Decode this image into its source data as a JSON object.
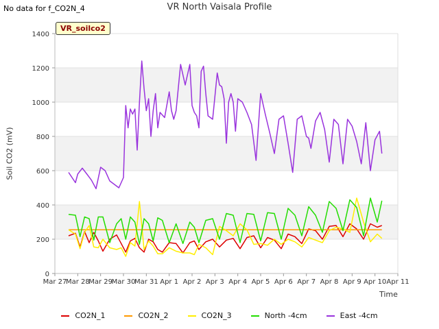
{
  "no_data_note": "No data for f_CO2N_4",
  "site_badge": "VR_soilco2",
  "chart_data": {
    "type": "line",
    "title": "VR North Vaisala Profile",
    "xlabel": "Time",
    "ylabel": "Soil CO2 (mV)",
    "ylim": [
      0,
      1400
    ],
    "xlim": [
      0,
      15
    ],
    "yticks": [
      0,
      200,
      400,
      600,
      800,
      1000,
      1200,
      1400
    ],
    "x_tick_labels": [
      "Mar 27",
      "Mar 28",
      "Mar 29",
      "Mar 30",
      "Mar 31",
      "Apr 1",
      "Apr 2",
      "Apr 3",
      "Apr 4",
      "Apr 5",
      "Apr 6",
      "Apr 7",
      "Apr 8",
      "Apr 9",
      "Apr 10",
      "Apr 11"
    ],
    "grid": "horizontal bands",
    "legend_position": "bottom",
    "series": [
      {
        "name": "CO2N_1",
        "color": "#dd0000",
        "x": [
          0.6,
          0.9,
          1.1,
          1.3,
          1.5,
          1.7,
          1.9,
          2.1,
          2.4,
          2.7,
          2.9,
          3.1,
          3.3,
          3.5,
          3.7,
          3.9,
          4.1,
          4.3,
          4.5,
          4.7,
          5.0,
          5.3,
          5.6,
          5.9,
          6.1,
          6.3,
          6.6,
          6.9,
          7.2,
          7.5,
          7.8,
          8.1,
          8.4,
          8.7,
          9.0,
          9.3,
          9.6,
          9.9,
          10.2,
          10.5,
          10.8,
          11.1,
          11.4,
          11.7,
          12.0,
          12.3,
          12.6,
          12.9,
          13.2,
          13.5,
          13.8,
          14.1,
          14.3
        ],
        "y": [
          220,
          235,
          155,
          245,
          180,
          240,
          190,
          130,
          200,
          225,
          175,
          125,
          190,
          205,
          150,
          125,
          200,
          185,
          140,
          125,
          180,
          175,
          120,
          180,
          190,
          140,
          185,
          200,
          155,
          195,
          205,
          145,
          210,
          220,
          150,
          210,
          195,
          145,
          230,
          215,
          175,
          260,
          250,
          200,
          275,
          280,
          215,
          290,
          260,
          200,
          290,
          270,
          280
        ]
      },
      {
        "name": "CO2N_2",
        "color": "#ff9900",
        "x": [
          0.6,
          14.3
        ],
        "y": [
          255,
          255
        ]
      },
      {
        "name": "CO2N_3",
        "color": "#ffee00",
        "x": [
          0.6,
          0.9,
          1.1,
          1.3,
          1.5,
          1.7,
          1.9,
          2.1,
          2.4,
          2.7,
          2.9,
          3.1,
          3.3,
          3.5,
          3.7,
          3.9,
          4.1,
          4.3,
          4.5,
          4.7,
          5.0,
          5.3,
          5.6,
          5.9,
          6.1,
          6.3,
          6.6,
          6.9,
          7.2,
          7.5,
          7.8,
          8.1,
          8.4,
          8.7,
          9.0,
          9.3,
          9.6,
          9.9,
          10.2,
          10.5,
          10.8,
          11.1,
          11.4,
          11.7,
          12.0,
          12.3,
          12.6,
          12.9,
          13.2,
          13.5,
          13.8,
          14.1,
          14.3
        ],
        "y": [
          255,
          230,
          145,
          240,
          280,
          155,
          150,
          200,
          150,
          140,
          150,
          100,
          180,
          160,
          420,
          140,
          190,
          160,
          115,
          115,
          150,
          130,
          120,
          120,
          110,
          170,
          150,
          110,
          275,
          250,
          220,
          290,
          255,
          170,
          175,
          165,
          200,
          170,
          200,
          185,
          155,
          210,
          195,
          180,
          250,
          270,
          260,
          240,
          440,
          300,
          185,
          230,
          205
        ]
      },
      {
        "name": "North -4cm",
        "color": "#22dd00",
        "x": [
          0.6,
          0.9,
          1.1,
          1.3,
          1.5,
          1.7,
          1.9,
          2.1,
          2.4,
          2.7,
          2.9,
          3.1,
          3.3,
          3.5,
          3.7,
          3.9,
          4.1,
          4.3,
          4.5,
          4.7,
          5.0,
          5.3,
          5.6,
          5.9,
          6.1,
          6.3,
          6.6,
          6.9,
          7.2,
          7.5,
          7.8,
          8.1,
          8.4,
          8.7,
          9.0,
          9.3,
          9.6,
          9.9,
          10.2,
          10.5,
          10.8,
          11.1,
          11.4,
          11.7,
          12.0,
          12.3,
          12.6,
          12.9,
          13.2,
          13.5,
          13.8,
          14.1,
          14.3
        ],
        "y": [
          345,
          340,
          215,
          330,
          320,
          195,
          330,
          330,
          180,
          290,
          320,
          200,
          330,
          300,
          170,
          320,
          290,
          190,
          325,
          310,
          180,
          290,
          175,
          300,
          270,
          180,
          310,
          320,
          200,
          350,
          340,
          180,
          350,
          345,
          190,
          355,
          350,
          200,
          380,
          340,
          220,
          390,
          340,
          240,
          420,
          380,
          250,
          430,
          385,
          220,
          440,
          300,
          425
        ]
      },
      {
        "name": "East -4cm",
        "color": "#9933dd",
        "x": [
          0.6,
          0.9,
          1.0,
          1.2,
          1.4,
          1.6,
          1.8,
          2.0,
          2.2,
          2.4,
          2.6,
          2.8,
          3.0,
          3.1,
          3.2,
          3.3,
          3.4,
          3.5,
          3.6,
          3.7,
          3.8,
          3.9,
          4.0,
          4.1,
          4.2,
          4.3,
          4.4,
          4.5,
          4.6,
          4.8,
          5.0,
          5.1,
          5.2,
          5.3,
          5.5,
          5.7,
          5.9,
          6.0,
          6.1,
          6.2,
          6.3,
          6.4,
          6.5,
          6.6,
          6.7,
          6.9,
          7.1,
          7.2,
          7.3,
          7.4,
          7.5,
          7.6,
          7.7,
          7.8,
          7.9,
          8.0,
          8.2,
          8.4,
          8.6,
          8.8,
          9.0,
          9.2,
          9.4,
          9.6,
          9.8,
          10.0,
          10.2,
          10.4,
          10.6,
          10.8,
          11.0,
          11.1,
          11.2,
          11.4,
          11.6,
          11.8,
          12.0,
          12.2,
          12.4,
          12.6,
          12.8,
          13.0,
          13.2,
          13.4,
          13.6,
          13.8,
          14.0,
          14.2,
          14.3
        ],
        "y": [
          590,
          530,
          580,
          615,
          580,
          545,
          495,
          620,
          600,
          540,
          520,
          500,
          560,
          980,
          850,
          960,
          930,
          960,
          720,
          1000,
          1240,
          1080,
          950,
          1020,
          800,
          950,
          1050,
          850,
          940,
          910,
          1060,
          950,
          900,
          950,
          1220,
          1100,
          1220,
          980,
          940,
          920,
          850,
          1180,
          1210,
          1050,
          920,
          900,
          1170,
          1100,
          1090,
          1020,
          760,
          1000,
          1050,
          1000,
          830,
          1020,
          1000,
          940,
          870,
          660,
          1050,
          930,
          820,
          700,
          900,
          920,
          760,
          590,
          900,
          920,
          800,
          790,
          730,
          890,
          940,
          840,
          650,
          900,
          870,
          640,
          900,
          860,
          770,
          640,
          880,
          600,
          780,
          830,
          700
        ]
      }
    ]
  }
}
